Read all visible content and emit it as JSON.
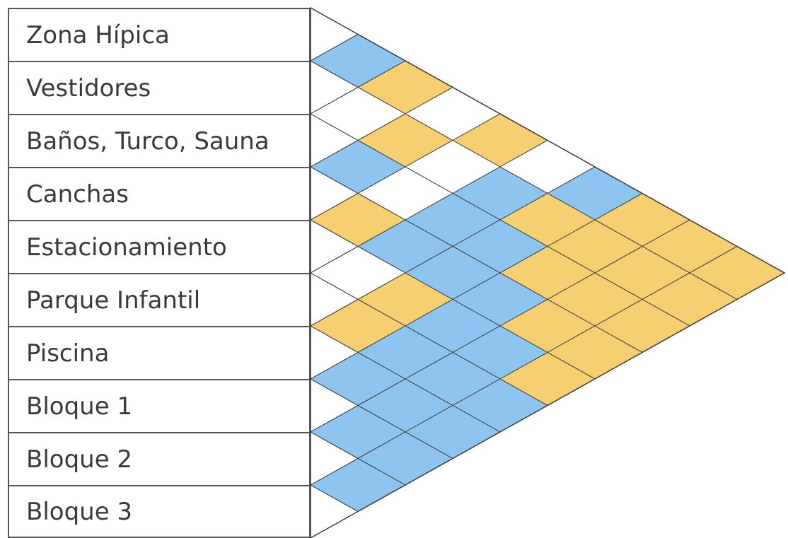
{
  "rows": [
    {
      "label": "Zona Hípica"
    },
    {
      "label": "Vestidores"
    },
    {
      "label": "Baños, Turco, Sauna"
    },
    {
      "label": "Canchas"
    },
    {
      "label": "Estacionamiento"
    },
    {
      "label": "Parque Infantil"
    },
    {
      "label": "Piscina"
    },
    {
      "label": "Bloque 1"
    },
    {
      "label": "Bloque 2"
    },
    {
      "label": "Bloque 3"
    }
  ],
  "colors": {
    "blue": "#8ec5f0",
    "orange": "#f6cf70",
    "empty": "#ffffff",
    "line": "#3b3b3b"
  },
  "matrix": {
    "pairs": [
      [
        "Zona Hípica",
        "Vestidores",
        "blue"
      ],
      [
        "Zona Hípica",
        "Baños, Turco, Sauna",
        "orange"
      ],
      [
        "Zona Hípica",
        "Canchas",
        "empty"
      ],
      [
        "Zona Hípica",
        "Estacionamiento",
        "orange"
      ],
      [
        "Zona Hípica",
        "Parque Infantil",
        "empty"
      ],
      [
        "Zona Hípica",
        "Piscina",
        "blue"
      ],
      [
        "Zona Hípica",
        "Bloque 1",
        "orange"
      ],
      [
        "Zona Hípica",
        "Bloque 2",
        "orange"
      ],
      [
        "Zona Hípica",
        "Bloque 3",
        "orange"
      ],
      [
        "Vestidores",
        "Baños, Turco, Sauna",
        "empty"
      ],
      [
        "Vestidores",
        "Canchas",
        "orange"
      ],
      [
        "Vestidores",
        "Estacionamiento",
        "empty"
      ],
      [
        "Vestidores",
        "Parque Infantil",
        "blue"
      ],
      [
        "Vestidores",
        "Piscina",
        "orange"
      ],
      [
        "Vestidores",
        "Bloque 1",
        "orange"
      ],
      [
        "Vestidores",
        "Bloque 2",
        "orange"
      ],
      [
        "Vestidores",
        "Bloque 3",
        "orange"
      ],
      [
        "Baños, Turco, Sauna",
        "Canchas",
        "blue"
      ],
      [
        "Baños, Turco, Sauna",
        "Estacionamiento",
        "empty"
      ],
      [
        "Baños, Turco, Sauna",
        "Parque Infantil",
        "blue"
      ],
      [
        "Baños, Turco, Sauna",
        "Piscina",
        "blue"
      ],
      [
        "Baños, Turco, Sauna",
        "Bloque 1",
        "orange"
      ],
      [
        "Baños, Turco, Sauna",
        "Bloque 2",
        "orange"
      ],
      [
        "Baños, Turco, Sauna",
        "Bloque 3",
        "orange"
      ],
      [
        "Canchas",
        "Estacionamiento",
        "orange"
      ],
      [
        "Canchas",
        "Parque Infantil",
        "blue"
      ],
      [
        "Canchas",
        "Piscina",
        "blue"
      ],
      [
        "Canchas",
        "Bloque 1",
        "blue"
      ],
      [
        "Canchas",
        "Bloque 2",
        "orange"
      ],
      [
        "Canchas",
        "Bloque 3",
        "orange"
      ],
      [
        "Estacionamiento",
        "Parque Infantil",
        "empty"
      ],
      [
        "Estacionamiento",
        "Piscina",
        "orange"
      ],
      [
        "Estacionamiento",
        "Bloque 1",
        "blue"
      ],
      [
        "Estacionamiento",
        "Bloque 2",
        "blue"
      ],
      [
        "Estacionamiento",
        "Bloque 3",
        "orange"
      ],
      [
        "Parque Infantil",
        "Piscina",
        "orange"
      ],
      [
        "Parque Infantil",
        "Bloque 1",
        "blue"
      ],
      [
        "Parque Infantil",
        "Bloque 2",
        "blue"
      ],
      [
        "Parque Infantil",
        "Bloque 3",
        "blue"
      ],
      [
        "Piscina",
        "Bloque 1",
        "blue"
      ],
      [
        "Piscina",
        "Bloque 2",
        "blue"
      ],
      [
        "Piscina",
        "Bloque 3",
        "blue"
      ],
      [
        "Bloque 1",
        "Bloque 2",
        "blue"
      ],
      [
        "Bloque 1",
        "Bloque 3",
        "blue"
      ],
      [
        "Bloque 2",
        "Bloque 3",
        "blue"
      ]
    ]
  }
}
